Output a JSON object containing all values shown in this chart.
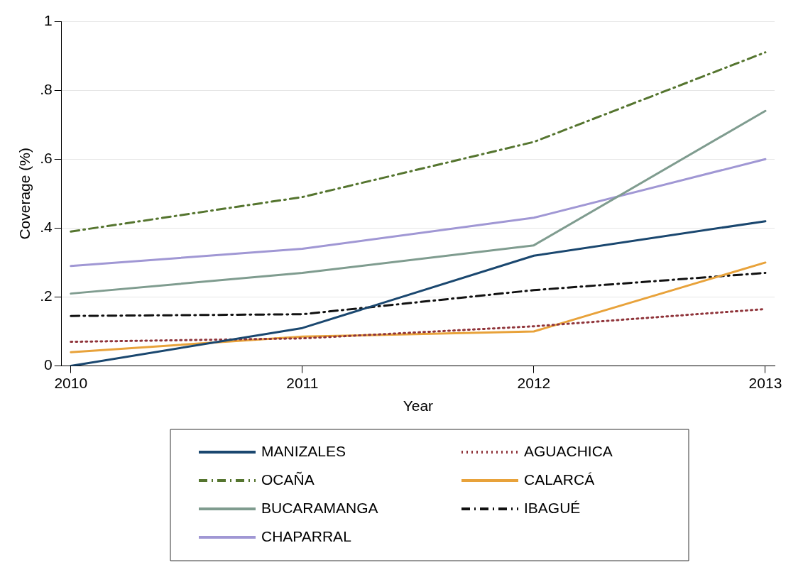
{
  "chart_data": {
    "type": "line",
    "xlabel": "Year",
    "ylabel": "Coverage (%)",
    "x": [
      2010,
      2011,
      2012,
      2013
    ],
    "xlim": [
      2009.96,
      2013.04
    ],
    "xticks": [
      2010,
      2011,
      2012,
      2013
    ],
    "ylim": [
      0,
      1
    ],
    "yticks": [
      0,
      {
        "value": 0.2,
        "label": ".2"
      },
      {
        "value": 0.4,
        "label": ".4"
      },
      {
        "value": 0.6,
        "label": ".6"
      },
      {
        "value": 0.8,
        "label": ".8"
      },
      1
    ],
    "grid": "y",
    "legend": "bottom",
    "marker": "none",
    "series": [
      {
        "name": "MANIZALES",
        "color": "#1a476f",
        "line_style": "solid",
        "values": [
          0,
          0.11,
          0.32,
          0.42
        ]
      },
      {
        "name": "OCAÑA",
        "color": "#55752f",
        "line_style": "dashed",
        "values": [
          0.39,
          0.49,
          0.65,
          0.91
        ]
      },
      {
        "name": "BUCARAMANGA",
        "color": "#7f9c8f",
        "line_style": "solid",
        "values": [
          0.21,
          0.27,
          0.35,
          0.74
        ]
      },
      {
        "name": "CHAPARRAL",
        "color": "#a097d4",
        "line_style": "solid",
        "values": [
          0.29,
          0.34,
          0.43,
          0.6
        ]
      },
      {
        "name": "AGUACHICA",
        "color": "#90353b",
        "line_style": "dotted",
        "values": [
          0.07,
          0.08,
          0.115,
          0.165
        ]
      },
      {
        "name": "CALARCÁ",
        "color": "#e8a23a",
        "line_style": "solid",
        "values": [
          0.04,
          0.085,
          0.1,
          0.3
        ]
      },
      {
        "name": "IBAGUÉ",
        "color": "#111111",
        "line_style": "dashed",
        "values": [
          0.145,
          0.15,
          0.22,
          0.27
        ]
      }
    ]
  }
}
